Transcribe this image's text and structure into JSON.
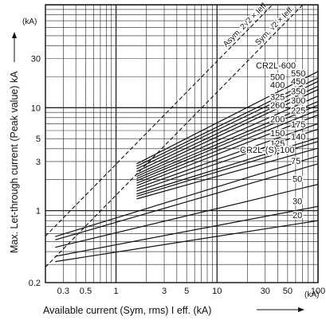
{
  "chart_data": {
    "type": "line",
    "x_scale": "log",
    "y_scale": "log",
    "xlim": [
      0.2,
      100
    ],
    "ylim": [
      0.2,
      100
    ],
    "grid": true,
    "xlabel": "Available current (Sym, rms) I eff. (kA)",
    "ylabel": "Max. Let-through current (Peak value) kA",
    "x_unit": "(kA)",
    "y_unit": "(kA)",
    "x_ticks": [
      {
        "value": 0.3,
        "label": "0.3"
      },
      {
        "value": 0.5,
        "label": "0.5"
      },
      {
        "value": 1,
        "label": "1"
      },
      {
        "value": 3,
        "label": "3"
      },
      {
        "value": 5,
        "label": "5"
      },
      {
        "value": 10,
        "label": "10"
      },
      {
        "value": 30,
        "label": "30"
      },
      {
        "value": 50,
        "label": "50"
      },
      {
        "value": 100,
        "label": "100"
      }
    ],
    "y_ticks": [
      {
        "value": 0.2,
        "label": "0.2"
      },
      {
        "value": 1,
        "label": "1"
      },
      {
        "value": 3,
        "label": "3"
      },
      {
        "value": 5,
        "label": "5"
      },
      {
        "value": 10,
        "label": "10"
      },
      {
        "value": 30,
        "label": "30"
      }
    ],
    "reference_lines": [
      {
        "name": "Asym. 2√2 × Ieff.",
        "label": "Asym. 2√2 × Ieff.",
        "slope_factor": 2.828,
        "dashed": true
      },
      {
        "name": "Sym. √2 × Ieff.",
        "label": "Sym. √2 × Ieff.",
        "slope_factor": 1.414,
        "dashed": true
      }
    ],
    "series": [
      {
        "name": "CR2L-600",
        "label": "CR2L-600",
        "x": [
          1.6,
          100
        ],
        "y": [
          2.85,
          22.5
        ]
      },
      {
        "name": "550",
        "label": "550",
        "x": [
          1.6,
          100
        ],
        "y": [
          2.7,
          19.5
        ]
      },
      {
        "name": "500",
        "label": "500",
        "x": [
          1.6,
          100
        ],
        "y": [
          2.55,
          18.0
        ]
      },
      {
        "name": "450",
        "label": "450",
        "x": [
          1.6,
          100
        ],
        "y": [
          2.4,
          16.2
        ]
      },
      {
        "name": "400",
        "label": "400",
        "x": [
          1.6,
          100
        ],
        "y": [
          2.25,
          15.0
        ]
      },
      {
        "name": "350",
        "label": "350",
        "x": [
          1.6,
          100
        ],
        "y": [
          2.15,
          13.0
        ]
      },
      {
        "name": "325",
        "label": "325",
        "x": [
          1.6,
          100
        ],
        "y": [
          2.05,
          11.5
        ]
      },
      {
        "name": "300",
        "label": "300",
        "x": [
          1.6,
          100
        ],
        "y": [
          1.95,
          10.6
        ]
      },
      {
        "name": "260",
        "label": "260",
        "x": [
          1.6,
          100
        ],
        "y": [
          1.85,
          9.5
        ]
      },
      {
        "name": "225",
        "label": "225",
        "x": [
          1.6,
          100
        ],
        "y": [
          1.75,
          8.5
        ]
      },
      {
        "name": "200",
        "label": "200",
        "x": [
          1.6,
          100
        ],
        "y": [
          1.65,
          7.0
        ]
      },
      {
        "name": "175",
        "label": "175",
        "x": [
          1.6,
          100
        ],
        "y": [
          1.55,
          6.2
        ]
      },
      {
        "name": "150",
        "label": "150",
        "x": [
          1.6,
          100
        ],
        "y": [
          1.45,
          5.1
        ]
      },
      {
        "name": "140",
        "label": "140",
        "x": [
          1.6,
          100
        ],
        "y": [
          1.38,
          4.7
        ]
      },
      {
        "name": "125",
        "label": "125",
        "x": [
          1.6,
          100
        ],
        "y": [
          1.3,
          4.05
        ]
      },
      {
        "name": "CR2L-(S)-100",
        "label": "CR2L-(S)-100",
        "x": [
          0.25,
          100
        ],
        "y": [
          0.56,
          3.4
        ]
      },
      {
        "name": "75",
        "label": "75",
        "x": [
          0.25,
          100
        ],
        "y": [
          0.52,
          2.85
        ]
      },
      {
        "name": "50",
        "label": "50",
        "x": [
          0.25,
          100
        ],
        "y": [
          0.44,
          1.8
        ]
      },
      {
        "name": "30",
        "label": "30",
        "x": [
          0.25,
          100
        ],
        "y": [
          0.36,
          1.1
        ]
      },
      {
        "name": "20",
        "label": "20",
        "x": [
          0.25,
          100
        ],
        "y": [
          0.32,
          0.8
        ]
      }
    ]
  }
}
